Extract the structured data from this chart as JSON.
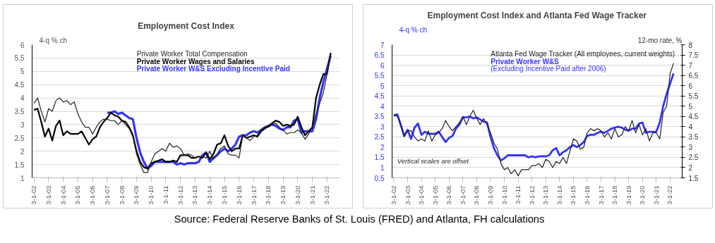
{
  "chart_data": [
    {
      "type": "line",
      "title": "Employment Cost Index",
      "ylabel": "4-q % ch",
      "categories": [
        "3-1-02",
        null,
        null,
        null,
        "3-1-03",
        null,
        null,
        null,
        "3-1-04",
        null,
        null,
        null,
        "3-1-05",
        null,
        null,
        null,
        "3-1-06",
        null,
        null,
        null,
        "3-1-07",
        null,
        null,
        null,
        "3-1-08",
        null,
        null,
        null,
        "3-1-09",
        null,
        null,
        null,
        "3-1-10",
        null,
        null,
        null,
        "3-1-11",
        null,
        null,
        null,
        "3-1-12",
        null,
        null,
        null,
        "3-1-13",
        null,
        null,
        null,
        "3-1-14",
        null,
        null,
        null,
        "3-1-15",
        null,
        null,
        null,
        "3-1-16",
        null,
        null,
        null,
        "3-1-17",
        null,
        null,
        null,
        "3-1-18",
        null,
        null,
        null,
        "3-1-19",
        null,
        null,
        null,
        "3-1-20",
        null,
        null,
        null,
        "3-1-21",
        null,
        null,
        null,
        "3-1-22",
        null
      ],
      "series": [
        {
          "name": "Private Worker Total Compensation",
          "color": "#222222",
          "values": [
            3.8,
            4.0,
            3.5,
            3.1,
            3.6,
            3.5,
            3.9,
            4.0,
            3.85,
            3.9,
            3.75,
            3.85,
            3.4,
            3.1,
            2.9,
            2.9,
            2.65,
            2.9,
            3.1,
            3.2,
            3.2,
            3.15,
            3.15,
            3.0,
            3.15,
            3.0,
            2.85,
            2.55,
            1.9,
            1.5,
            1.2,
            1.2,
            1.6,
            1.9,
            2.0,
            2.1,
            2.0,
            2.3,
            2.15,
            2.2,
            2.1,
            1.85,
            1.9,
            1.85,
            1.75,
            1.8,
            1.8,
            1.75,
            2.0,
            1.7,
            1.9,
            2.1,
            2.2,
            1.9,
            1.85,
            1.85,
            1.75,
            2.6,
            2.5,
            2.4,
            2.55,
            2.6,
            2.8,
            2.9,
            2.9,
            3.0,
            3.05,
            2.9,
            2.8,
            2.65,
            2.7,
            2.7,
            2.8,
            2.7,
            2.45,
            2.65,
            2.9,
            3.4,
            3.8,
            4.2,
            4.9,
            5.65
          ]
        },
        {
          "name": "Private Worker Wages and Salaries",
          "color": "#000000",
          "values": [
            3.55,
            3.6,
            3.1,
            2.55,
            2.85,
            2.4,
            2.95,
            3.15,
            2.6,
            2.75,
            2.65,
            2.65,
            2.65,
            2.75,
            2.5,
            2.25,
            2.45,
            2.55,
            2.9,
            3.1,
            3.25,
            3.45,
            3.35,
            3.3,
            3.15,
            3.1,
            2.9,
            2.6,
            2.0,
            1.6,
            1.4,
            1.35,
            1.55,
            1.6,
            1.65,
            1.7,
            1.6,
            1.6,
            1.65,
            1.6,
            1.85,
            1.85,
            1.85,
            1.75,
            1.75,
            1.8,
            1.75,
            1.95,
            1.7,
            1.9,
            2.25,
            2.3,
            2.6,
            2.2,
            2.0,
            2.1,
            2.1,
            2.6,
            2.5,
            2.55,
            2.6,
            2.55,
            2.75,
            2.85,
            2.95,
            3.05,
            3.15,
            3.1,
            2.95,
            3.0,
            2.95,
            3.0,
            3.3,
            2.9,
            2.6,
            2.75,
            2.9,
            4.0,
            4.5,
            4.9,
            4.9,
            5.7
          ]
        },
        {
          "name": "Private Worker W&S Excluding Incentive Paid",
          "color": "#3333ff",
          "values": [
            null,
            null,
            null,
            null,
            null,
            null,
            null,
            null,
            null,
            null,
            null,
            null,
            null,
            null,
            null,
            null,
            null,
            null,
            null,
            null,
            3.45,
            3.45,
            3.5,
            3.4,
            3.45,
            3.35,
            3.25,
            3.2,
            2.5,
            1.95,
            1.6,
            1.35,
            1.45,
            1.6,
            1.6,
            1.6,
            1.6,
            1.6,
            1.6,
            1.5,
            1.55,
            1.5,
            1.55,
            1.55,
            1.55,
            1.6,
            1.85,
            1.95,
            1.6,
            1.75,
            1.85,
            2.0,
            2.1,
            2.0,
            2.1,
            2.25,
            2.55,
            2.6,
            2.6,
            2.7,
            2.75,
            2.7,
            2.8,
            2.9,
            2.95,
            3.0,
            2.95,
            2.85,
            2.8,
            2.9,
            2.9,
            3.15,
            3.2,
            2.7,
            2.75,
            2.75,
            2.75,
            3.2,
            4.0,
            4.6,
            5.1,
            5.6
          ]
        }
      ],
      "ylim": [
        1,
        6
      ],
      "yticks": [
        1,
        1.5,
        2,
        2.5,
        3,
        3.5,
        4,
        4.5,
        5,
        5.5,
        6
      ],
      "grid": "y",
      "legend": "top"
    },
    {
      "type": "line",
      "title": "Employment Cost Index and Atlanta Fed Wage Tracker",
      "ylabel": "4-q % ch",
      "y2label": "12-mo rate, %",
      "categories": [
        "3-1-02",
        null,
        null,
        null,
        "3-1-03",
        null,
        null,
        null,
        "3-1-04",
        null,
        null,
        null,
        "3-1-05",
        null,
        null,
        null,
        "3-1-06",
        null,
        null,
        null,
        "3-1-07",
        null,
        null,
        null,
        "3-1-08",
        null,
        null,
        null,
        "3-1-09",
        null,
        null,
        null,
        "3-1-10",
        null,
        null,
        null,
        "3-1-11",
        null,
        null,
        null,
        "3-1-12",
        null,
        null,
        null,
        "3-1-13",
        null,
        null,
        null,
        "3-1-14",
        null,
        null,
        null,
        "3-1-15",
        null,
        null,
        null,
        "3-1-16",
        null,
        null,
        null,
        "3-1-17",
        null,
        null,
        null,
        "3-1-18",
        null,
        null,
        null,
        "3-1-19",
        null,
        null,
        null,
        "3-1-20",
        null,
        null,
        null,
        "3-1-21",
        null,
        null,
        null,
        "3-1-22",
        null
      ],
      "series": [
        {
          "name": "Atlanta Fed Wage Tracker (All employees, current weights)",
          "color": "#222222",
          "axis": "y2",
          "values": [
            4.55,
            4.55,
            4.05,
            3.5,
            3.8,
            3.8,
            3.5,
            3.3,
            3.4,
            3.3,
            3.8,
            3.3,
            3.6,
            3.7,
            3.9,
            4.3,
            4.0,
            3.8,
            4.0,
            4.2,
            4.5,
            4.1,
            4.5,
            4.8,
            4.4,
            4.1,
            4.4,
            4.1,
            3.7,
            3.2,
            2.9,
            2.2,
            1.9,
            2.0,
            1.7,
            1.9,
            1.6,
            1.9,
            1.9,
            1.9,
            2.1,
            2.1,
            2.2,
            2.0,
            2.4,
            2.3,
            2.0,
            2.3,
            2.2,
            2.5,
            2.2,
            2.8,
            3.4,
            3.3,
            2.9,
            3.0,
            3.7,
            3.9,
            3.8,
            3.9,
            3.8,
            3.5,
            3.7,
            3.4,
            3.9,
            3.5,
            3.6,
            4.0,
            3.8,
            4.3,
            3.7,
            4.1,
            3.6,
            3.9,
            3.3,
            3.7,
            3.7,
            3.4,
            4.7,
            5.0,
            6.6,
            7.1
          ]
        },
        {
          "name": "Private Worker W&S\n(Excluding Incentive Paid after 2006)",
          "color": "#3333ff",
          "values": [
            3.55,
            3.6,
            3.1,
            2.55,
            2.85,
            2.4,
            2.95,
            3.15,
            2.6,
            2.75,
            2.65,
            2.65,
            2.65,
            2.75,
            2.5,
            2.25,
            2.45,
            2.55,
            2.9,
            3.1,
            3.45,
            3.45,
            3.5,
            3.4,
            3.45,
            3.35,
            3.25,
            3.2,
            2.5,
            1.95,
            1.6,
            1.35,
            1.45,
            1.6,
            1.6,
            1.6,
            1.6,
            1.6,
            1.6,
            1.5,
            1.55,
            1.5,
            1.55,
            1.55,
            1.55,
            1.6,
            1.85,
            1.95,
            1.6,
            1.75,
            1.85,
            2.0,
            2.1,
            2.0,
            2.1,
            2.25,
            2.55,
            2.6,
            2.6,
            2.7,
            2.75,
            2.7,
            2.8,
            2.9,
            2.95,
            3.0,
            2.95,
            2.85,
            2.8,
            2.9,
            2.9,
            3.15,
            3.2,
            2.7,
            2.75,
            2.75,
            2.75,
            3.2,
            4.0,
            4.6,
            5.1,
            5.6
          ]
        }
      ],
      "ylim": [
        0.5,
        7
      ],
      "yticks": [
        0.5,
        1,
        1.5,
        2,
        2.5,
        3,
        3.5,
        4,
        4.5,
        5,
        5.5,
        6,
        6.5,
        7
      ],
      "y2lim": [
        1.5,
        8
      ],
      "y2ticks": [
        1.5,
        2,
        2.5,
        3,
        3.5,
        4,
        4.5,
        5,
        5.5,
        6,
        6.5,
        7,
        7.5,
        8
      ],
      "grid": "y",
      "legend": "top",
      "annotations": [
        "Vertical scales are offset",
        "Source: Federal Reserve Banks of St. Louis (FRED) and Atlanta, FH calculations"
      ]
    }
  ]
}
